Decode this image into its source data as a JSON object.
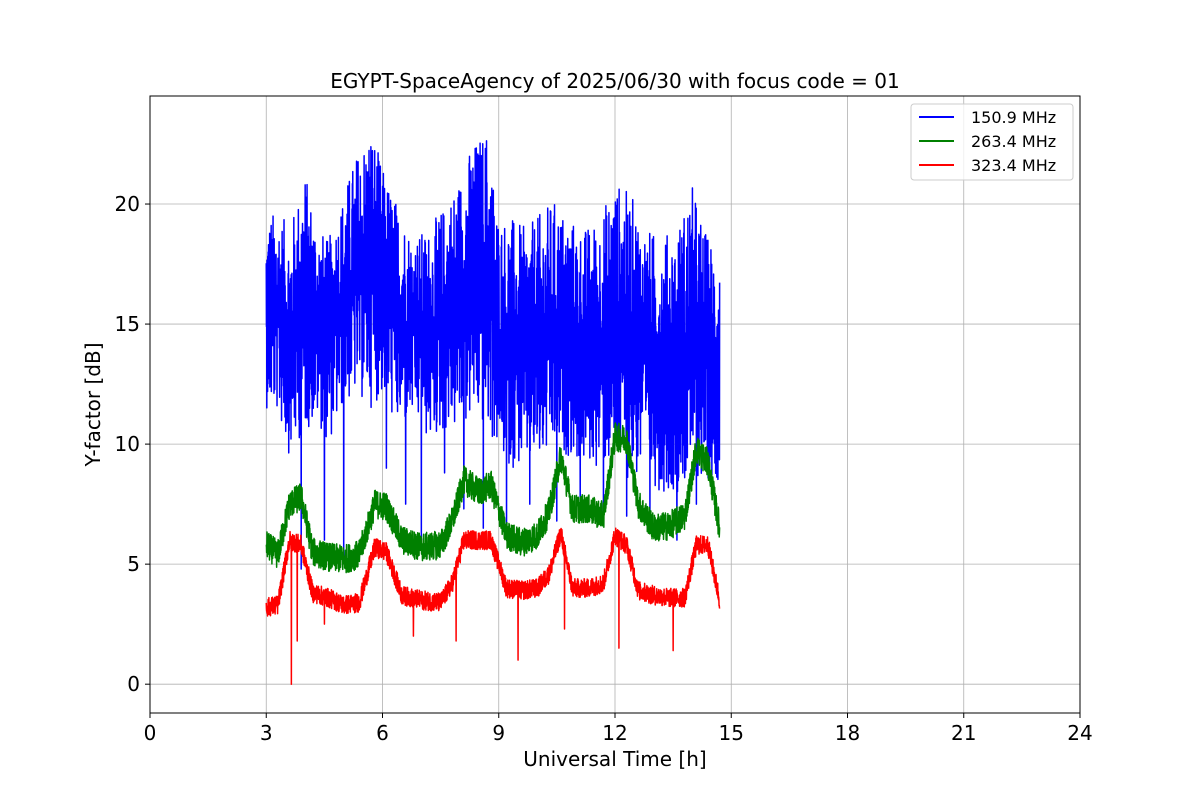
{
  "chart_data": {
    "type": "line",
    "title": "EGYPT-SpaceAgency of 2025/06/30 with focus code = 01",
    "xlabel": "Universal Time [h]",
    "ylabel": "Y-factor [dB]",
    "xlim": [
      0,
      24
    ],
    "ylim": [
      -1.2,
      24.5
    ],
    "xticks": [
      0,
      3,
      6,
      9,
      12,
      15,
      18,
      21,
      24
    ],
    "yticks": [
      0,
      5,
      10,
      15,
      20
    ],
    "grid": true,
    "legend_position": "top-right",
    "series": [
      {
        "name": "150.9 MHz",
        "color": "#0000ff",
        "x": [
          3.0,
          3.3,
          3.6,
          4.0,
          4.3,
          4.6,
          5.0,
          5.3,
          5.7,
          6.0,
          6.4,
          6.8,
          7.2,
          7.6,
          8.0,
          8.3,
          8.7,
          9.0,
          9.3,
          9.7,
          10.0,
          10.4,
          10.8,
          11.2,
          11.6,
          12.0,
          12.4,
          12.8,
          13.2,
          13.6,
          14.0,
          14.3,
          14.7
        ],
        "min": [
          11.5,
          11.2,
          9.5,
          10.5,
          11.0,
          10.0,
          11.5,
          12.0,
          11.5,
          12.0,
          10.5,
          11.0,
          10.0,
          10.5,
          10.5,
          11.0,
          10.5,
          9.5,
          9.0,
          9.0,
          9.0,
          9.5,
          9.5,
          9.0,
          9.0,
          9.0,
          8.5,
          8.5,
          8.0,
          8.0,
          8.5,
          8.5,
          8.5
        ],
        "max": [
          19.5,
          19.8,
          19.0,
          21.4,
          19.2,
          18.5,
          20.5,
          22.0,
          23.4,
          21.5,
          20.0,
          18.7,
          19.0,
          20.0,
          21.2,
          22.5,
          23.2,
          19.5,
          19.5,
          19.0,
          19.5,
          20.2,
          19.5,
          19.0,
          19.5,
          21.0,
          20.5,
          19.0,
          18.7,
          19.0,
          20.8,
          19.0,
          18.0
        ],
        "spikes": [
          [
            3.9,
            4.8
          ],
          [
            4.5,
            6.0
          ],
          [
            5.0,
            5.2
          ],
          [
            6.1,
            9.0
          ],
          [
            6.6,
            7.5
          ],
          [
            7.0,
            6.0
          ],
          [
            7.6,
            8.8
          ],
          [
            8.1,
            7.3
          ],
          [
            8.6,
            6.5
          ],
          [
            9.2,
            6.6
          ],
          [
            9.8,
            7.5
          ],
          [
            10.5,
            6.8
          ],
          [
            11.1,
            7.0
          ],
          [
            11.7,
            6.7
          ],
          [
            12.3,
            7.0
          ],
          [
            12.9,
            6.5
          ],
          [
            13.6,
            6.0
          ],
          [
            14.1,
            7.5
          ]
        ]
      },
      {
        "name": "263.4 MHz",
        "color": "#008000",
        "x": [
          3.0,
          3.3,
          3.6,
          3.9,
          4.2,
          4.6,
          5.0,
          5.4,
          5.8,
          6.1,
          6.5,
          7.0,
          7.5,
          7.8,
          8.1,
          8.5,
          8.8,
          9.2,
          9.6,
          10.0,
          10.3,
          10.6,
          10.9,
          11.3,
          11.7,
          12.0,
          12.3,
          12.6,
          13.0,
          13.4,
          13.8,
          14.1,
          14.4,
          14.7
        ],
        "y": [
          5.8,
          5.4,
          7.5,
          7.8,
          5.5,
          5.3,
          5.2,
          5.4,
          7.5,
          7.4,
          6.0,
          5.7,
          5.8,
          6.8,
          8.5,
          8.0,
          8.3,
          6.2,
          5.9,
          6.2,
          7.2,
          9.5,
          7.3,
          7.3,
          7.0,
          10.3,
          10.2,
          7.5,
          6.5,
          6.6,
          7.0,
          9.8,
          9.2,
          6.5
        ],
        "noise": 0.6
      },
      {
        "name": "323.4 MHz",
        "color": "#ff0000",
        "x": [
          3.0,
          3.3,
          3.6,
          3.9,
          4.2,
          4.6,
          5.0,
          5.4,
          5.8,
          6.1,
          6.5,
          7.0,
          7.5,
          7.8,
          8.1,
          8.5,
          8.8,
          9.2,
          9.6,
          10.0,
          10.3,
          10.6,
          10.9,
          11.3,
          11.7,
          12.0,
          12.3,
          12.6,
          13.0,
          13.4,
          13.8,
          14.1,
          14.4,
          14.7
        ],
        "y": [
          3.2,
          3.3,
          6.0,
          5.8,
          3.8,
          3.6,
          3.3,
          3.4,
          5.7,
          5.5,
          3.7,
          3.5,
          3.4,
          4.2,
          6.0,
          6.0,
          6.0,
          4.0,
          3.9,
          4.0,
          4.6,
          6.3,
          4.0,
          4.0,
          4.2,
          6.2,
          5.8,
          3.9,
          3.7,
          3.6,
          3.6,
          5.8,
          5.8,
          3.5
        ],
        "noise": 0.4,
        "spikes": [
          [
            3.65,
            0.0
          ],
          [
            3.8,
            1.8
          ],
          [
            4.5,
            2.5
          ],
          [
            6.8,
            2.0
          ],
          [
            7.9,
            1.8
          ],
          [
            9.5,
            1.0
          ],
          [
            10.7,
            2.3
          ],
          [
            12.1,
            1.5
          ],
          [
            13.5,
            1.4
          ]
        ]
      }
    ]
  }
}
